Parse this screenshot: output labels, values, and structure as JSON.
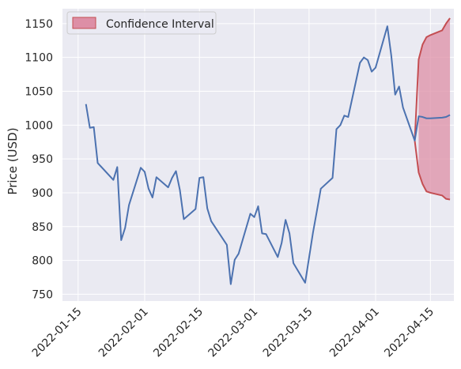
{
  "colors": {
    "background": "#eaeaf2",
    "grid": "#ffffff",
    "price_line": "#4c72b0",
    "interval_fill": "#dd8fa6",
    "interval_edge": "#c44e52"
  },
  "chart_data": {
    "type": "line",
    "title": "",
    "xlabel": "",
    "ylabel": "Price (USD)",
    "grid": true,
    "legend_position": "top-left",
    "xlim": [
      "2022-01-11",
      "2022-04-21"
    ],
    "ylim": [
      740,
      1172
    ],
    "x_ticks": [
      "2022-01-15",
      "2022-02-01",
      "2022-02-15",
      "2022-03-01",
      "2022-03-15",
      "2022-04-01",
      "2022-04-15"
    ],
    "y_ticks": [
      750,
      800,
      850,
      900,
      950,
      1000,
      1050,
      1100,
      1150
    ],
    "series": [
      {
        "kind": "line",
        "x": [
          "2022-01-17",
          "2022-01-18",
          "2022-01-19",
          "2022-01-20",
          "2022-01-24",
          "2022-01-25",
          "2022-01-26",
          "2022-01-27",
          "2022-01-28",
          "2022-01-31",
          "2022-02-01",
          "2022-02-02",
          "2022-02-03",
          "2022-02-04",
          "2022-02-07",
          "2022-02-08",
          "2022-02-09",
          "2022-02-10",
          "2022-02-11",
          "2022-02-14",
          "2022-02-15",
          "2022-02-16",
          "2022-02-17",
          "2022-02-18",
          "2022-02-22",
          "2022-02-23",
          "2022-02-24",
          "2022-02-25",
          "2022-02-28",
          "2022-03-01",
          "2022-03-02",
          "2022-03-03",
          "2022-03-04",
          "2022-03-07",
          "2022-03-08",
          "2022-03-09",
          "2022-03-10",
          "2022-03-11",
          "2022-03-14",
          "2022-03-15",
          "2022-03-16",
          "2022-03-17",
          "2022-03-18",
          "2022-03-21",
          "2022-03-22",
          "2022-03-23",
          "2022-03-24",
          "2022-03-25",
          "2022-03-28",
          "2022-03-29",
          "2022-03-30",
          "2022-03-31",
          "2022-04-01",
          "2022-04-04",
          "2022-04-05",
          "2022-04-06",
          "2022-04-07",
          "2022-04-08",
          "2022-04-11",
          "2022-04-12",
          "2022-04-13",
          "2022-04-14",
          "2022-04-15",
          "2022-04-18",
          "2022-04-19",
          "2022-04-20"
        ],
        "y": [
          1031,
          996,
          997,
          944,
          919,
          938,
          830,
          848,
          882,
          937,
          931,
          906,
          893,
          923,
          908,
          922,
          932,
          904,
          861,
          876,
          922,
          923,
          877,
          858,
          823,
          765,
          801,
          810,
          869,
          864,
          880,
          840,
          839,
          805,
          826,
          860,
          840,
          796,
          767,
          804,
          841,
          873,
          906,
          922,
          994,
          1000,
          1014,
          1012,
          1092,
          1100,
          1096,
          1079,
          1085,
          1146,
          1103,
          1045,
          1057,
          1026,
          977,
          1013,
          1012,
          1010,
          1010,
          1011,
          1012,
          1015
        ]
      },
      {
        "name": "Confidence Interval",
        "kind": "band",
        "x": [
          "2022-04-12",
          "2022-04-13",
          "2022-04-14",
          "2022-04-15",
          "2022-04-18",
          "2022-04-19",
          "2022-04-20"
        ],
        "lower": [
          930,
          913,
          902,
          900,
          896,
          891,
          890
        ],
        "upper": [
          1097,
          1119,
          1130,
          1133,
          1140,
          1150,
          1158
        ]
      }
    ]
  }
}
